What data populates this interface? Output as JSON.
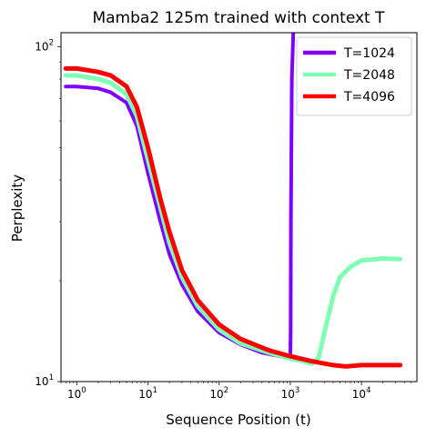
{
  "chart_data": {
    "type": "line",
    "title": "Mamba2 125m trained with context T",
    "xlabel": "Sequence Position (t)",
    "ylabel": "Perplexity",
    "xscale": "log",
    "yscale": "log",
    "xlim": [
      0.6,
      60000
    ],
    "ylim": [
      10,
      110
    ],
    "xticks": [
      {
        "value": 1,
        "base": "10",
        "exp": "0"
      },
      {
        "value": 10,
        "base": "10",
        "exp": "1"
      },
      {
        "value": 100,
        "base": "10",
        "exp": "2"
      },
      {
        "value": 1000,
        "base": "10",
        "exp": "3"
      },
      {
        "value": 10000,
        "base": "10",
        "exp": "4"
      }
    ],
    "yticks": [
      {
        "value": 10,
        "base": "10",
        "exp": "1"
      },
      {
        "value": 100,
        "base": "10",
        "exp": "2"
      }
    ],
    "legend": {
      "placement": "top-right"
    },
    "series": [
      {
        "name": "T=1024",
        "color": "#8000ff",
        "x": [
          0.7,
          1,
          2,
          3,
          5,
          7,
          10,
          15,
          20,
          30,
          50,
          100,
          200,
          400,
          700,
          1000,
          1010,
          1020,
          1050,
          1100
        ],
        "y": [
          76,
          76,
          75,
          73,
          68,
          58,
          42,
          30,
          24,
          19.5,
          16.2,
          14,
          12.9,
          12.2,
          11.9,
          11.8,
          14,
          30,
          80,
          110
        ]
      },
      {
        "name": "T=2048",
        "color": "#80ffb4",
        "x": [
          0.7,
          1,
          2,
          3,
          5,
          7,
          10,
          15,
          20,
          30,
          50,
          100,
          200,
          500,
          1000,
          1500,
          2000,
          2500,
          3000,
          4000,
          5000,
          7000,
          10000,
          20000,
          35000
        ],
        "y": [
          82,
          82,
          80,
          78,
          72,
          62,
          46,
          33,
          26,
          20.5,
          16.8,
          14.3,
          13,
          12.2,
          11.7,
          11.5,
          11.3,
          11.8,
          14,
          18,
          20.5,
          22,
          23,
          23.3,
          23.2
        ]
      },
      {
        "name": "T=4096",
        "color": "#ff0000",
        "x": [
          0.7,
          1,
          2,
          3,
          5,
          7,
          10,
          15,
          20,
          30,
          50,
          100,
          200,
          500,
          1000,
          2000,
          4000,
          6000,
          10000,
          20000,
          35000
        ],
        "y": [
          86,
          86,
          84,
          82,
          76,
          66,
          50,
          35,
          28,
          21.5,
          17.5,
          14.8,
          13.4,
          12.4,
          11.9,
          11.5,
          11.2,
          11.1,
          11.2,
          11.2,
          11.2
        ]
      }
    ]
  }
}
